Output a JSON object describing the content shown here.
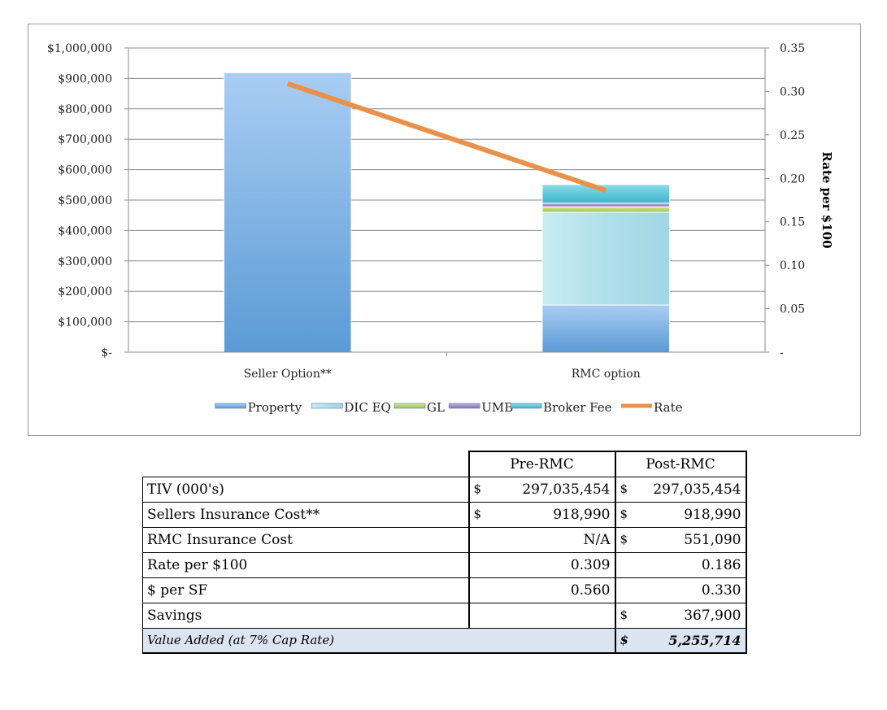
{
  "chart_data": {
    "type": "bar",
    "stacked": true,
    "categories": [
      "Seller Option**",
      "RMC option"
    ],
    "series": [
      {
        "name": "Property",
        "values": [
          918990,
          155000
        ],
        "color": "#5b9bd5"
      },
      {
        "name": "DIC EQ",
        "values": [
          0,
          305000
        ],
        "color": "#b0dfea"
      },
      {
        "name": "GL",
        "values": [
          0,
          18000
        ],
        "color": "#b8d36a"
      },
      {
        "name": "UMB",
        "values": [
          0,
          12000
        ],
        "color": "#9b83c4"
      },
      {
        "name": "Broker Fee",
        "values": [
          0,
          61090
        ],
        "color": "#4bc3d6"
      }
    ],
    "line_series": {
      "name": "Rate",
      "values": [
        0.309,
        0.186
      ],
      "color": "#e9914a",
      "axis": "right"
    },
    "y_left": {
      "min": 0,
      "max": 1000000,
      "ticks": [
        "$-",
        "$100,000",
        "$200,000",
        "$300,000",
        "$400,000",
        "$500,000",
        "$600,000",
        "$700,000",
        "$800,000",
        "$900,000",
        "$1,000,000"
      ]
    },
    "y_right": {
      "min": 0,
      "max": 0.35,
      "ticks": [
        "-",
        "0.05",
        "0.10",
        "0.15",
        "0.20",
        "0.25",
        "0.30",
        "0.35"
      ],
      "label": "Rate per $100"
    },
    "grid": true,
    "legend_position": "bottom"
  },
  "table": {
    "headers": {
      "pre": "Pre-RMC",
      "post": "Post-RMC"
    },
    "rows": [
      {
        "label": "TIV (000's)",
        "pre_cur": "$",
        "pre": "297,035,454",
        "post_cur": "$",
        "post": "297,035,454"
      },
      {
        "label": "Sellers Insurance Cost**",
        "pre_cur": "$",
        "pre": "918,990",
        "post_cur": "$",
        "post": "918,990"
      },
      {
        "label": "RMC Insurance Cost",
        "pre_cur": "",
        "pre": "N/A",
        "post_cur": "$",
        "post": "551,090"
      },
      {
        "label": "Rate per $100",
        "pre_cur": "",
        "pre": "0.309",
        "post_cur": "",
        "post": "0.186"
      },
      {
        "label": "$ per SF",
        "pre_cur": "",
        "pre": "0.560",
        "post_cur": "",
        "post": "0.330"
      },
      {
        "label": "Savings",
        "pre_cur": "",
        "pre": "",
        "post_cur": "$",
        "post": "367,900"
      }
    ],
    "value_added": {
      "label": "Value Added (at 7% Cap Rate)",
      "cur": "$",
      "value": "5,255,714"
    }
  }
}
